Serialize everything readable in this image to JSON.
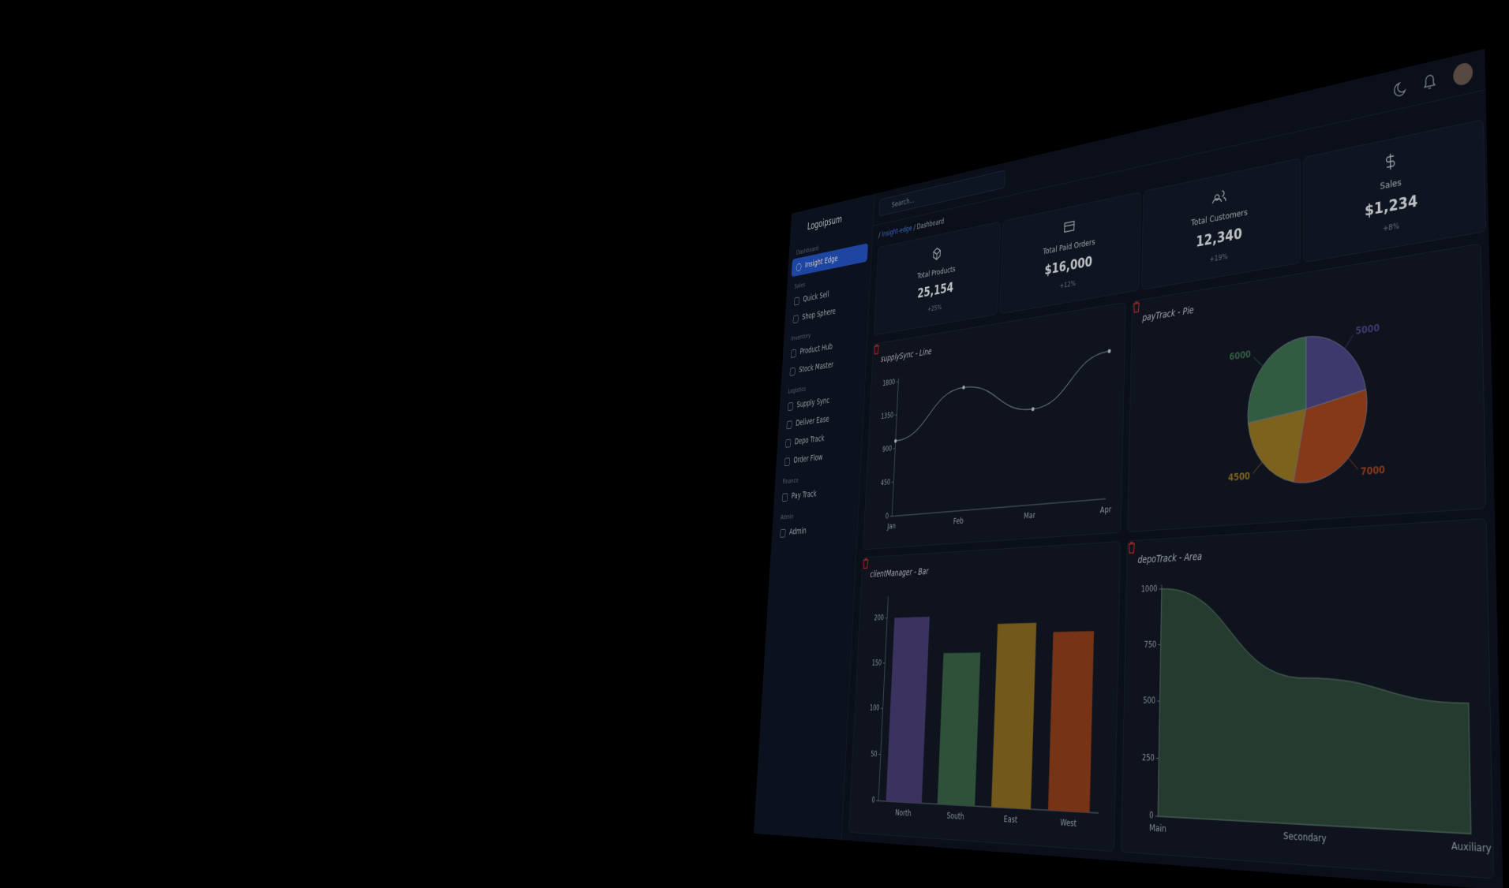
{
  "sidebar": {
    "logo": "Logoipsum",
    "sections": [
      {
        "title": "Dashboard",
        "items": [
          "Insight Edge"
        ]
      },
      {
        "title": "Sales",
        "items": [
          "Quick Sell",
          "Shop Sphere"
        ]
      },
      {
        "title": "Inventory",
        "items": [
          "Product Hub",
          "Stock Master"
        ]
      },
      {
        "title": "Logistics",
        "items": [
          "Supply Sync",
          "Deliver Ease",
          "Depo Track",
          "Order Flow"
        ]
      },
      {
        "title": "Finance",
        "items": [
          "Pay Track"
        ]
      },
      {
        "title": "Admin",
        "items": [
          "Admin"
        ]
      }
    ]
  },
  "search": {
    "placeholder": "Search..."
  },
  "breadcrumb": [
    "Insight-edge",
    "Dashboard"
  ],
  "stats": [
    {
      "label": "Total Products",
      "value": "25,154",
      "change": "+25%"
    },
    {
      "label": "Total Paid Orders",
      "value": "$16,000",
      "change": "+12%"
    },
    {
      "label": "Total Customers",
      "value": "12,340",
      "change": "+19%"
    },
    {
      "label": "Sales",
      "value": "$1,234",
      "change": "+8%"
    }
  ],
  "chart_data": [
    {
      "type": "line",
      "title": "supplySync - Line",
      "categories": [
        "Jan",
        "Feb",
        "Mar",
        "Apr"
      ],
      "values": [
        1000,
        1600,
        1200,
        1800
      ],
      "color": "#7d8496",
      "ylim": [
        0,
        1800
      ],
      "yticks": [
        0,
        450,
        900,
        1350,
        1800
      ]
    },
    {
      "type": "pie",
      "title": "payTrack - Pie",
      "categories": [
        "Purple",
        "Orange",
        "Gold",
        "Green"
      ],
      "values": [
        5000,
        7000,
        4500,
        6000
      ],
      "colors": [
        "#4e4788",
        "#a8471f",
        "#9c7a25",
        "#3f7352"
      ]
    },
    {
      "type": "bar",
      "title": "clientManager - Bar",
      "categories": [
        "North",
        "South",
        "East",
        "West"
      ],
      "values": [
        200,
        160,
        190,
        180
      ],
      "colors": [
        "#4a3f78",
        "#3b6548",
        "#8f6f22",
        "#93401c"
      ],
      "ylim": [
        0,
        220
      ],
      "yticks": [
        0,
        50,
        100,
        150,
        200
      ]
    },
    {
      "type": "area",
      "title": "depoTrack - Area",
      "categories": [
        "Main",
        "Secondary",
        "Auxiliary"
      ],
      "values": [
        1000,
        600,
        500
      ],
      "color": "#2f4a3c",
      "ylim": [
        0,
        1000
      ],
      "yticks": [
        0,
        250,
        500,
        750,
        1000
      ]
    }
  ]
}
